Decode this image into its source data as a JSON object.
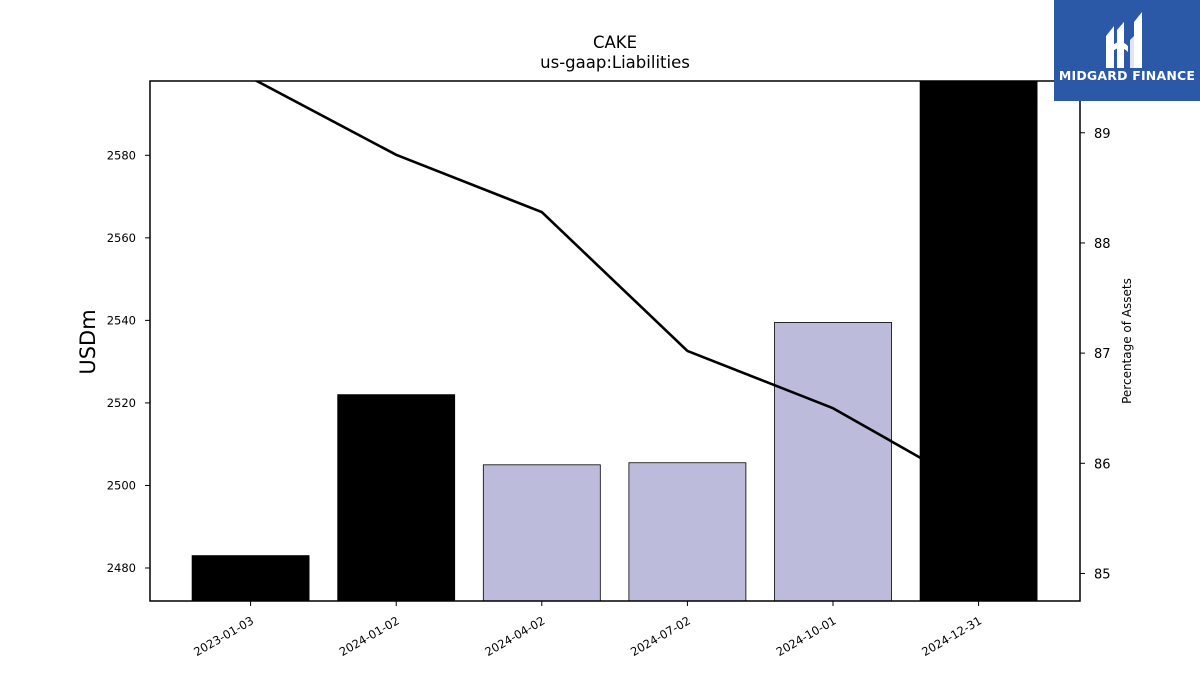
{
  "chart_data": {
    "type": "bar",
    "title": "CAKE",
    "subtitle": "us-gaap:Liabilities",
    "ylabel": "USDm",
    "y2label": "Percentage of Assets",
    "categories": [
      "2023-01-03",
      "2024-01-02",
      "2024-04-02",
      "2024-07-02",
      "2024-10-01",
      "2024-12-31"
    ],
    "bars": {
      "values": [
        2483,
        2522,
        2505,
        2505.5,
        2539.5,
        2600
      ],
      "colors": [
        "#000000",
        "#000000",
        "#bdbbdb",
        "#bdbbdb",
        "#bdbbdb",
        "#000000"
      ]
    },
    "line": {
      "values": [
        89.5,
        88.8,
        88.28,
        87.02,
        86.5,
        85.75
      ],
      "color": "#000000"
    },
    "ylim": [
      2472,
      2598
    ],
    "y2lim": [
      84.75,
      89.47
    ],
    "yticks": [
      2480,
      2500,
      2520,
      2540,
      2560,
      2580
    ],
    "y2ticks": [
      85,
      86,
      87,
      88,
      89
    ],
    "grid": false,
    "legend": "none"
  },
  "logo": {
    "text": "MIDGARD FINANCE",
    "background": "#2b59a8"
  }
}
